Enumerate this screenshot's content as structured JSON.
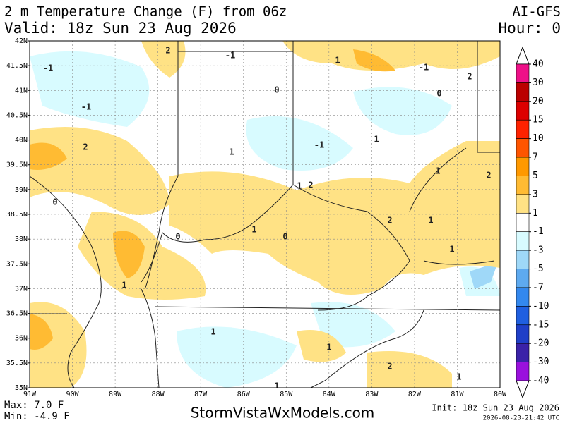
{
  "header": {
    "title": "2 m Temperature Change (F) from 06z",
    "model": "AI-GFS",
    "valid": "Valid: 18z Sun 23 Aug 2026",
    "hour": "Hour: 0"
  },
  "map": {
    "lat_labels": [
      "42N",
      "41.5N",
      "41N",
      "40.5N",
      "40N",
      "39.5N",
      "39N",
      "38.5N",
      "38N",
      "37.5N",
      "37N",
      "36.5N",
      "36N",
      "35.5N",
      "35N"
    ],
    "lon_labels": [
      "91W",
      "90W",
      "89W",
      "88W",
      "87W",
      "86W",
      "85W",
      "84W",
      "83W",
      "82W",
      "81W",
      "80W"
    ],
    "contour_labels": [
      "-1",
      "2",
      "-1",
      "1",
      "-1",
      "2",
      "0",
      "0",
      "-1",
      "2",
      "1",
      "-1",
      "1",
      "1",
      "2",
      "0",
      "1",
      "2",
      "1",
      "0",
      "0",
      "2",
      "1",
      "1",
      "1",
      "1",
      "1",
      "2",
      "1",
      "1"
    ]
  },
  "colorbar": {
    "labels": [
      40,
      30,
      20,
      15,
      10,
      7,
      5,
      3,
      1,
      -1,
      -3,
      -5,
      -7,
      -10,
      -15,
      -20,
      -30,
      -40
    ],
    "colors": [
      "#ee1188",
      "#bb0000",
      "#dd0000",
      "#ff2200",
      "#ff5500",
      "#ff9900",
      "#ffbb33",
      "#ffe285",
      "#ffffff",
      "#d8fbff",
      "#9fd8f8",
      "#5eaaf0",
      "#3388ee",
      "#1f5fe0",
      "#1f3fc8",
      "#3b22a8",
      "#9a11dd"
    ]
  },
  "footer": {
    "max": "Max: 7.0 F",
    "min": "Min: -4.9 F",
    "site": "StormVistaWxModels.com",
    "init": "Init: 18z Sun 23 Aug 2026",
    "timestamp": "2026-08-23-21:42 UTC"
  }
}
